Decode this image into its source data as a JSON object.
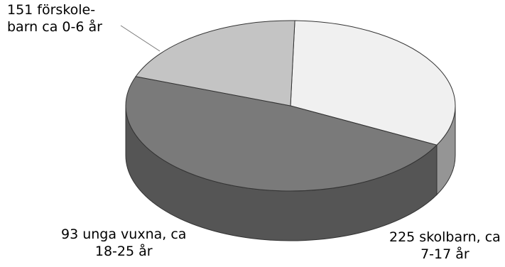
{
  "chart_data": {
    "type": "pie",
    "title": "",
    "slices": [
      {
        "label": "151 förskole- barn ca 0-6 år",
        "value": 151,
        "color": "#f0f0f0",
        "side_color": "#959595"
      },
      {
        "label": "225 skolbarn, ca 7-17 år",
        "value": 225,
        "color": "#7a7a7a",
        "side_color": "#555555"
      },
      {
        "label": "93 unga vuxna, ca 18-25 år",
        "value": 93,
        "color": "#c4c4c4",
        "side_color": "#8c8c8c"
      }
    ],
    "labels_text": [
      {
        "line1": "151 förskole-",
        "line2": "barn ca 0-6 år"
      },
      {
        "line1": "225 skolbarn, ca",
        "line2": "7-17 år"
      },
      {
        "line1": "93 unga vuxna, ca",
        "line2": "18-25 år"
      }
    ],
    "legend": "none",
    "style": "3d-pie"
  }
}
